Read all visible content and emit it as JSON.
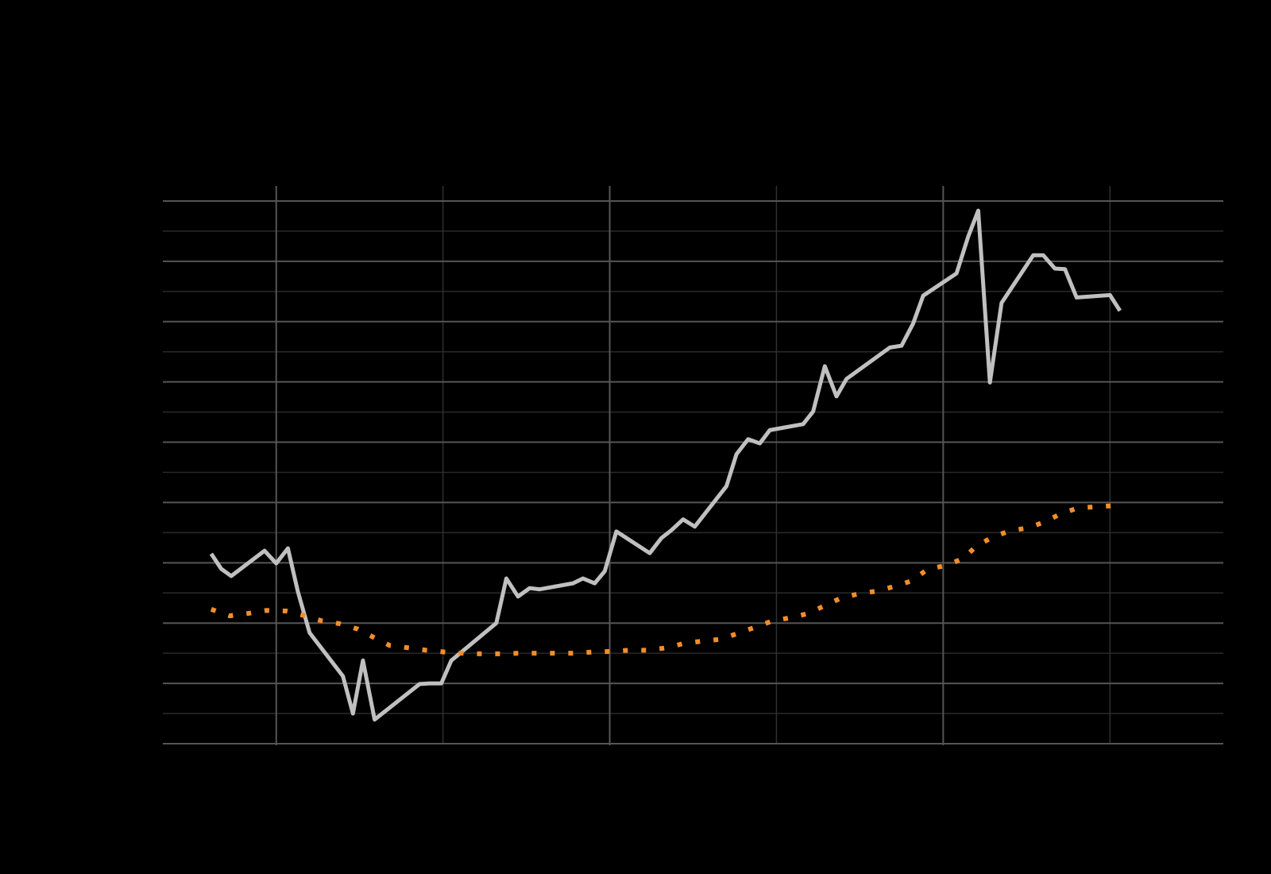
{
  "chart_data": {
    "type": "line",
    "xlim": [
      1.32,
      7.68
    ],
    "xticks": [
      2,
      4,
      6
    ],
    "xminorticks": [
      3,
      5,
      7
    ],
    "ylim": [
      0,
      9.25
    ],
    "yticks": [
      0,
      1,
      2,
      3,
      4,
      5,
      6,
      7,
      8,
      9
    ],
    "yminorticks": [
      0.5,
      1.5,
      2.5,
      3.5,
      4.5,
      5.5,
      6.5,
      7.5,
      8.5
    ],
    "grid": true,
    "series": [
      {
        "color": "#c0c0c0",
        "style": "solid",
        "x": [
          1.61,
          1.67,
          1.73,
          1.93,
          2.0,
          2.07,
          2.13,
          2.2,
          2.4,
          2.46,
          2.52,
          2.59,
          2.86,
          2.92,
          2.99,
          3.05,
          3.32,
          3.38,
          3.45,
          3.52,
          3.58,
          3.78,
          3.84,
          3.91,
          3.97,
          4.04,
          4.24,
          4.31,
          4.37,
          4.44,
          4.51,
          4.7,
          4.76,
          4.83,
          4.9,
          4.96,
          5.16,
          5.22,
          5.29,
          5.36,
          5.42,
          5.68,
          5.75,
          5.82,
          5.88,
          6.08,
          6.15,
          6.21,
          6.28,
          6.35,
          6.54,
          6.6,
          6.67,
          6.73,
          6.8,
          7.0,
          7.06
        ],
        "values": [
          3.15,
          2.9,
          2.78,
          3.2,
          2.99,
          3.24,
          2.52,
          1.84,
          1.12,
          0.5,
          1.38,
          0.4,
          0.99,
          1.0,
          1.0,
          1.38,
          2.0,
          2.74,
          2.44,
          2.58,
          2.56,
          2.66,
          2.74,
          2.66,
          2.86,
          3.52,
          3.16,
          3.41,
          3.54,
          3.72,
          3.6,
          4.27,
          4.8,
          5.05,
          4.98,
          5.2,
          5.3,
          5.51,
          6.26,
          5.76,
          6.05,
          6.57,
          6.6,
          6.97,
          7.43,
          7.8,
          8.41,
          8.84,
          5.99,
          7.31,
          8.1,
          8.1,
          7.88,
          7.87,
          7.4,
          7.44,
          7.18
        ]
      },
      {
        "color": "#f28e2b",
        "style": "dotted",
        "x": [
          1.61,
          1.72,
          1.83,
          1.94,
          2.06,
          2.16,
          2.27,
          2.38,
          2.49,
          2.58,
          2.68,
          2.79,
          2.9,
          3.01,
          3.12,
          3.23,
          3.35,
          3.45,
          3.56,
          3.67,
          3.78,
          3.9,
          4.0,
          4.12,
          4.23,
          4.34,
          4.44,
          4.55,
          4.66,
          4.77,
          4.88,
          4.98,
          5.09,
          5.19,
          5.29,
          5.39,
          5.5,
          5.6,
          5.71,
          5.81,
          5.91,
          6.01,
          6.12,
          6.2,
          6.3,
          6.4,
          6.51,
          6.61,
          6.71,
          6.81,
          6.92,
          7.03
        ],
        "values": [
          2.23,
          2.12,
          2.16,
          2.21,
          2.2,
          2.13,
          2.04,
          1.99,
          1.9,
          1.77,
          1.63,
          1.59,
          1.55,
          1.52,
          1.5,
          1.49,
          1.49,
          1.5,
          1.5,
          1.5,
          1.5,
          1.52,
          1.53,
          1.55,
          1.55,
          1.59,
          1.66,
          1.7,
          1.73,
          1.83,
          1.94,
          2.04,
          2.09,
          2.16,
          2.29,
          2.42,
          2.49,
          2.53,
          2.61,
          2.7,
          2.9,
          2.95,
          3.07,
          3.28,
          3.43,
          3.53,
          3.58,
          3.68,
          3.82,
          3.91,
          3.93,
          3.95
        ]
      }
    ]
  }
}
